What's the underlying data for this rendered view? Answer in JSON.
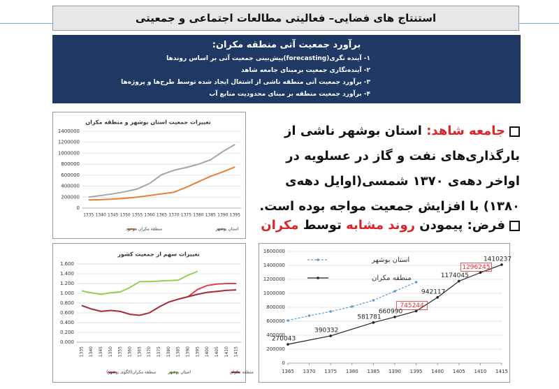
{
  "header": {
    "title": "استنتاج های فضایی– فعالیتی مطالعات اجتماعی و جمعیتی"
  },
  "box": {
    "title": "برآورد جمعیت آتی منطقه مکران:",
    "lines": [
      "۱- آینده نگری(forecasting)پیش‌بینی جمعیت آتی بر اساس روندها",
      "۲- آینده‌نگاری جمعیت برمبنای جامعه شاهد",
      "۳- برآورد جمعیت آتی منطقه ناشی از اشتغال ایجاد شده توسط طرح‌ها و پروژه‌ها",
      "۴- برآورد جمعیت منطقه بر مبنای محدودیت منابع آب"
    ]
  },
  "bullets": [
    {
      "parts": [
        {
          "text": "جامعه شاهد:",
          "color": "#d9262b"
        },
        {
          "text": " استان بوشهر ناشی از بارگذاری‌های نفت و گاز در عسلویه در اواخر دهه‌ی ۱۳۷۰ شمسی(اوایل دهه‌ی ۱۳۸۰) با افزایش جمعیت مواجه بوده است.",
          "color": "#111111"
        }
      ]
    },
    {
      "parts": [
        {
          "text": "فرض: پیمودن ",
          "color": "#111111"
        },
        {
          "text": "روند مشابه",
          "color": "#d9262b"
        },
        {
          "text": " توسط ",
          "color": "#111111"
        },
        {
          "text": "مکران",
          "color": "#d9262b"
        }
      ]
    }
  ],
  "charts": [
    {
      "type": "line",
      "title": "تغییرات جمعیت استان بوشهر و منطقه مکران",
      "legend": "bottom",
      "grid": true,
      "categories": [
        1335,
        1340,
        1345,
        1350,
        1355,
        1360,
        1365,
        1370,
        1375,
        1380,
        1385,
        1390,
        1395
      ],
      "ylim": [
        0,
        1400000
      ],
      "yticks": [
        0,
        200000,
        400000,
        600000,
        800000,
        1000000,
        1200000,
        1400000
      ],
      "series": [
        {
          "name": "منطقه مکران موجود",
          "color": "#ed7d31",
          "values": [
            150000,
            155000,
            165000,
            180000,
            200000,
            230000,
            260000,
            290000,
            380000,
            480000,
            580000,
            660000,
            750000
          ]
        },
        {
          "name": "استان بوشهر",
          "color": "#a5a5a5",
          "values": [
            200000,
            230000,
            260000,
            300000,
            350000,
            450000,
            610000,
            690000,
            740000,
            800000,
            880000,
            1030000,
            1160000
          ]
        }
      ]
    },
    {
      "type": "line",
      "title": "تغییرات سهم از جمعیت کشور",
      "legend": "bottom",
      "grid": true,
      "xlabel_rotate": true,
      "categories": [
        1335,
        1340,
        1345,
        1350,
        1355,
        1360,
        1365,
        1370,
        1375,
        1380,
        1385,
        1390,
        1395,
        1400,
        1405,
        1410,
        1415
      ],
      "ylim": [
        0,
        1.6
      ],
      "yticks": [
        {
          "value": 0,
          "label": "0.000"
        },
        {
          "value": 0.2,
          "label": "0.200"
        },
        {
          "value": 0.4,
          "label": "0.400"
        },
        {
          "value": 0.6,
          "label": "0.600"
        },
        {
          "value": 0.8,
          "label": "0.800"
        },
        {
          "value": 1,
          "label": "1.000"
        },
        {
          "value": 1.2,
          "label": "1.200"
        },
        {
          "value": 1.4,
          "label": "1.400"
        },
        {
          "value": 1.6,
          "label": "1.600"
        }
      ],
      "series": [
        {
          "name": "منطقه مکران(الگوی بوشهر)",
          "color": "#e0404f",
          "values": [
            null,
            null,
            null,
            null,
            null,
            null,
            null,
            null,
            null,
            null,
            null,
            0.93,
            1.08,
            1.16,
            1.19,
            1.2,
            1.2
          ]
        },
        {
          "name": "استان بوشهر",
          "color": "#92d050",
          "values": [
            1.05,
            1.01,
            0.98,
            1.01,
            1.03,
            1.12,
            1.24,
            1.24,
            1.25,
            1.26,
            1.27,
            1.37,
            1.45,
            null,
            null,
            null,
            null
          ]
        },
        {
          "name": "منطقه مکران",
          "color": "#a52a3a",
          "values": [
            0.75,
            0.68,
            0.63,
            0.65,
            0.63,
            0.57,
            0.55,
            0.6,
            0.72,
            0.82,
            0.88,
            0.93,
            0.98,
            1.02,
            1.04,
            1.06,
            1.07
          ]
        }
      ]
    },
    {
      "type": "line",
      "legend": "top-left",
      "grid": true,
      "xlim": [
        1365,
        1415
      ],
      "xticks": [
        1365,
        1370,
        1375,
        1380,
        1385,
        1390,
        1395,
        1400,
        1405,
        1410,
        1415
      ],
      "ylim": [
        0,
        1600000
      ],
      "yticks": [
        0,
        200000,
        400000,
        600000,
        800000,
        1000000,
        1200000,
        1400000,
        1600000
      ],
      "series": [
        {
          "name": "استان بوشهر",
          "color": "#5b9bd5",
          "dash": true,
          "markers": true,
          "x": [
            1365,
            1370,
            1375,
            1380,
            1385,
            1390,
            1395
          ],
          "values": [
            610000,
            680000,
            740000,
            810000,
            900000,
            1030000,
            1160000
          ]
        },
        {
          "name": "منطقه مکران",
          "color": "#222222",
          "markers": true,
          "data_labels": true,
          "x": [
            1365,
            1375,
            1385,
            1390,
            1395,
            1400,
            1405,
            1410,
            1415
          ],
          "values": [
            270043,
            390332,
            581781,
            660990,
            745244,
            942117,
            1174045,
            1296245,
            1410237
          ],
          "label_colors": [
            "#222222",
            "#222222",
            "#222222",
            "#222222",
            "#e0303a",
            "#222222",
            "#222222",
            "#e0303a",
            "#222222"
          ]
        }
      ]
    }
  ]
}
